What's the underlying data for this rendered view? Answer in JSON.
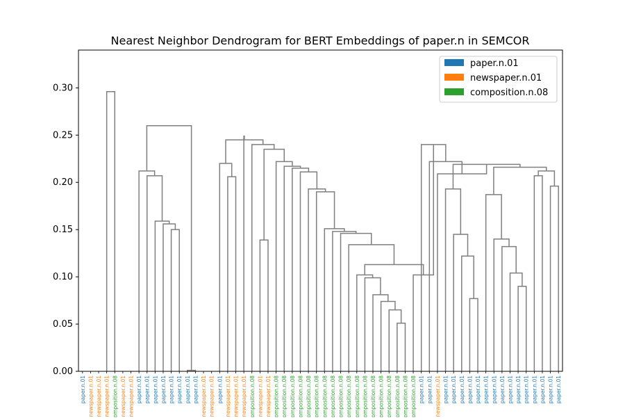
{
  "chart_data": {
    "type": "dendrogram",
    "title": "Nearest Neighbor Dendrogram for BERT Embeddings of paper.n in SEMCOR",
    "xlabel": "",
    "ylabel": "",
    "ylim": [
      0,
      0.34
    ],
    "yticks": [
      0.0,
      0.05,
      0.1,
      0.15,
      0.2,
      0.25,
      0.3
    ],
    "ytick_labels": [
      "0.00",
      "0.05",
      "0.10",
      "0.15",
      "0.20",
      "0.25",
      "0.30"
    ],
    "grid": false,
    "link_color": "#7f7f7f",
    "legend": {
      "position": "top-right",
      "entries": [
        {
          "name": "paper.n.01",
          "color": "#1f77b4"
        },
        {
          "name": "newspaper.n.01",
          "color": "#ff7f0e"
        },
        {
          "name": "composition.n.08",
          "color": "#2ca02c"
        }
      ]
    },
    "leaf_labels": [
      "paper.n.01",
      "newspaper.n.01",
      "newspaper.n.01",
      "newspaper.n.01",
      "composition.n.08",
      "newspaper.n.01",
      "newspaper.n.01",
      "paper.n.01",
      "paper.n.01",
      "paper.n.01",
      "paper.n.01",
      "paper.n.01",
      "paper.n.01",
      "paper.n.01",
      "paper.n.01",
      "newspaper.n.01",
      "newspaper.n.01",
      "paper.n.01",
      "newspaper.n.01",
      "newspaper.n.01",
      "newspaper.n.01",
      "composition.n.08",
      "newspaper.n.01",
      "newspaper.n.01",
      "composition.n.08",
      "composition.n.08",
      "composition.n.08",
      "composition.n.08",
      "composition.n.08",
      "composition.n.08",
      "composition.n.08",
      "composition.n.08",
      "composition.n.08",
      "composition.n.08",
      "composition.n.08",
      "composition.n.08",
      "composition.n.08",
      "composition.n.08",
      "composition.n.08",
      "composition.n.08",
      "composition.n.08",
      "composition.n.08",
      "paper.n.01",
      "paper.n.01",
      "newspaper.n.01",
      "paper.n.01",
      "paper.n.01",
      "paper.n.01",
      "paper.n.01",
      "paper.n.01",
      "paper.n.01",
      "paper.n.01",
      "paper.n.01",
      "paper.n.01",
      "paper.n.01",
      "paper.n.01",
      "paper.n.01",
      "paper.n.01",
      "paper.n.01",
      "paper.n.01"
    ],
    "links": [
      {
        "from": [
          18,
          19
        ],
        "height": 0.206
      },
      {
        "from": [
          17,
          60
        ],
        "height": 0.22
      },
      {
        "from": [
          22,
          23
        ],
        "height": 0.139
      },
      {
        "from": [
          39,
          40
        ],
        "height": 0.051
      },
      {
        "from": [
          38,
          63
        ],
        "height": 0.065
      },
      {
        "from": [
          37,
          64
        ],
        "height": 0.074
      },
      {
        "from": [
          36,
          65
        ],
        "height": 0.081
      },
      {
        "from": [
          35,
          66
        ],
        "height": 0.099
      },
      {
        "from": [
          34,
          67
        ],
        "height": 0.102
      },
      {
        "from": [
          41,
          42
        ],
        "height": 0.102
      },
      {
        "from": [
          69,
          70
        ],
        "height": 0.113
      },
      {
        "from": [
          33,
          71
        ],
        "height": 0.134
      },
      {
        "from": [
          32,
          72
        ],
        "height": 0.146
      },
      {
        "from": [
          31,
          73
        ],
        "height": 0.148
      },
      {
        "from": [
          30,
          74
        ],
        "height": 0.151
      },
      {
        "from": [
          29,
          75
        ],
        "height": 0.19
      },
      {
        "from": [
          28,
          76
        ],
        "height": 0.193
      },
      {
        "from": [
          27,
          77
        ],
        "height": 0.211
      },
      {
        "from": [
          26,
          78
        ],
        "height": 0.215
      },
      {
        "from": [
          25,
          79
        ],
        "height": 0.217
      },
      {
        "from": [
          24,
          80
        ],
        "height": 0.222
      },
      {
        "from": [
          62,
          81
        ],
        "height": 0.235
      },
      {
        "from": [
          21,
          82
        ],
        "height": 0.24
      },
      {
        "from": [
          20,
          83
        ],
        "height": 0.245
      },
      {
        "from": [
          61,
          84
        ],
        "height": 0.249
      },
      {
        "from": [
          48,
          49
        ],
        "height": 0.077
      },
      {
        "from": [
          47,
          86
        ],
        "height": 0.122
      },
      {
        "from": [
          46,
          87
        ],
        "height": 0.145
      },
      {
        "from": [
          45,
          88
        ],
        "height": 0.193
      },
      {
        "from": [
          54,
          55
        ],
        "height": 0.09
      },
      {
        "from": [
          53,
          90
        ],
        "height": 0.104
      },
      {
        "from": [
          52,
          91
        ],
        "height": 0.132
      },
      {
        "from": [
          51,
          92
        ],
        "height": 0.14
      },
      {
        "from": [
          50,
          93
        ],
        "height": 0.187
      },
      {
        "from": [
          57,
          58
        ],
        "height": 0.0
      },
      {
        "from": [
          56,
          95
        ],
        "height": 0.0
      },
      {
        "from": [
          59,
          60
        ],
        "height": 0.0
      },
      {
        "from": [
          55,
          56
        ],
        "height": 0.0
      },
      {
        "from": [
          0,
          0
        ],
        "height": 0.0
      }
    ],
    "leaf_tree": [
      {
        "leaves": [
          18,
          19
        ],
        "h": 0.206
      },
      {
        "leaves": [
          17,
          19
        ],
        "h": 0.22
      }
    ]
  }
}
